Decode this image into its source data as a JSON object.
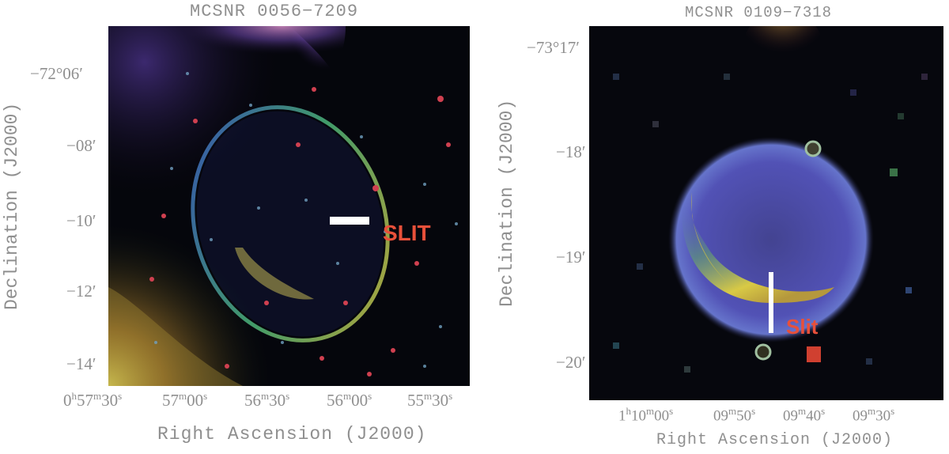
{
  "left_panel": {
    "title": "MCSNR 0056−7209",
    "ylabel": "Declination (J2000)",
    "xlabel": "Right Ascension (J2000)",
    "yticks": [
      "−72°06′",
      "−08′",
      "−10′",
      "−12′",
      "−14′"
    ],
    "xticks": [
      {
        "a": "0",
        "au": "h",
        "b": "57",
        "bu": "m",
        "c": "30",
        "cu": "s"
      },
      {
        "a": "",
        "au": "",
        "b": "57",
        "bu": "m",
        "c": "00",
        "cu": "s"
      },
      {
        "a": "",
        "au": "",
        "b": "56",
        "bu": "m",
        "c": "30",
        "cu": "s"
      },
      {
        "a": "",
        "au": "",
        "b": "56",
        "bu": "m",
        "c": "00",
        "cu": "s"
      },
      {
        "a": "",
        "au": "",
        "b": "55",
        "bu": "m",
        "c": "30",
        "cu": "s"
      }
    ],
    "slit_label": "SLIT"
  },
  "right_panel": {
    "title": "MCSNR 0109−7318",
    "ylabel": "Declination (J2000)",
    "xlabel": "Right Ascension (J2000)",
    "yticks": [
      "−73°17′",
      "−18′",
      "−19′",
      "−20′"
    ],
    "xticks": [
      {
        "a": "1",
        "au": "h",
        "b": "10",
        "bu": "m",
        "c": "00",
        "cu": "s"
      },
      {
        "a": "",
        "au": "",
        "b": "09",
        "bu": "m",
        "c": "50",
        "cu": "s"
      },
      {
        "a": "",
        "au": "",
        "b": "09",
        "bu": "m",
        "c": "40",
        "cu": "s"
      },
      {
        "a": "",
        "au": "",
        "b": "09",
        "bu": "m",
        "c": "30",
        "cu": "s"
      }
    ],
    "slit_label": "Slit"
  },
  "colors": {
    "label_gray": "#8f8f8f",
    "slit_text": "#e8503a",
    "slit_bar": "#ffffff",
    "background": "#05060c"
  }
}
